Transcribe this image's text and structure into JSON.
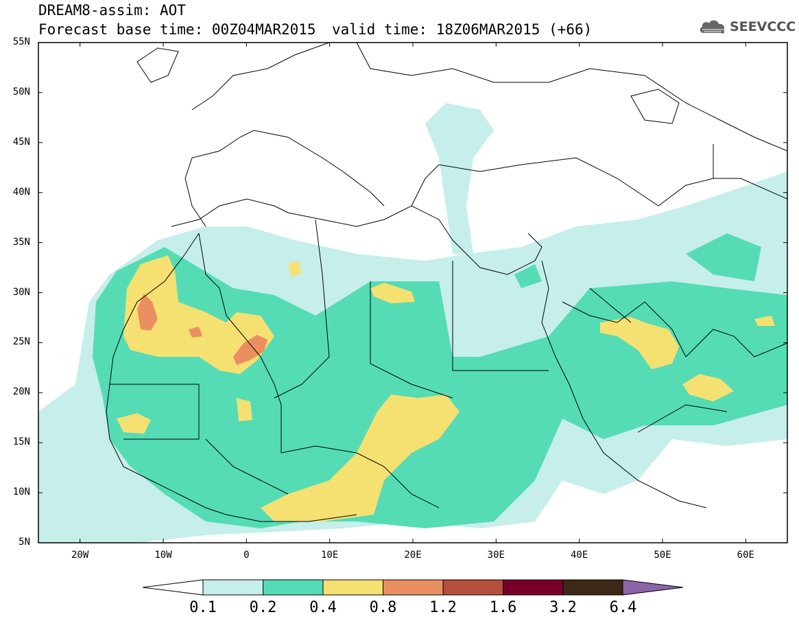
{
  "header": {
    "model_title": "DREAM8-assim: AOT",
    "base_time": "Forecast base time: 00Z04MAR2015",
    "valid_time": "valid time: 18Z06MAR2015 (+66)",
    "logo_text": "SEEVCCC",
    "logo_icon": "cloud-icon"
  },
  "map": {
    "projection": "cylindrical equidistant",
    "lon_range": [
      -25,
      65
    ],
    "lat_range": [
      5,
      55
    ],
    "lat_labels": [
      "55N",
      "50N",
      "45N",
      "40N",
      "35N",
      "30N",
      "25N",
      "20N",
      "15N",
      "10N",
      "5N"
    ],
    "lat_values": [
      55,
      50,
      45,
      40,
      35,
      30,
      25,
      20,
      15,
      10,
      5
    ],
    "lon_labels": [
      "20W",
      "10W",
      "0",
      "10E",
      "20E",
      "30E",
      "40E",
      "50E",
      "60E"
    ],
    "lon_values": [
      -20,
      -10,
      0,
      10,
      20,
      30,
      40,
      50,
      60
    ]
  },
  "colorbar": {
    "levels": [
      "0.1",
      "0.2",
      "0.4",
      "0.8",
      "1.2",
      "1.6",
      "3.2",
      "6.4"
    ],
    "colors": [
      "#c6eeea",
      "#55dcb4",
      "#f5e072",
      "#ea9060",
      "#b4503c",
      "#780028",
      "#3c2814",
      "#8c64aa"
    ],
    "under_color": "#ffffff"
  }
}
